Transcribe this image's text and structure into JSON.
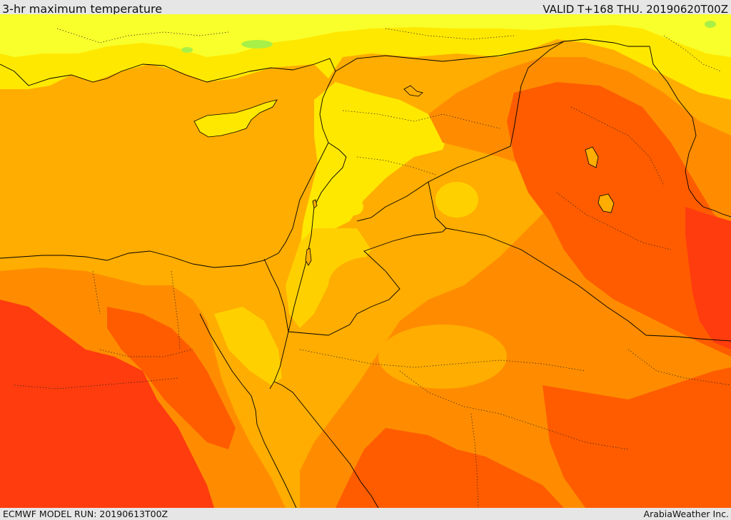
{
  "header": {
    "title": "3-hr maximum temperature",
    "valid_time": "VALID T+168 THU. 20190620T00Z"
  },
  "footer": {
    "model_run": "ECMWF MODEL RUN: 20190613T00Z",
    "credit": "ArabiaWeather Inc."
  },
  "map": {
    "palette": {
      "pale_yellow": "#f8ff2a",
      "yellow": "#ffe800",
      "gold": "#ffd000",
      "light_orange": "#ffad00",
      "orange": "#ff8c00",
      "dark_orange": "#ff5c00",
      "red_orange": "#ff3c0e",
      "light_green": "#a8f048",
      "coast_line": "#000000"
    }
  }
}
